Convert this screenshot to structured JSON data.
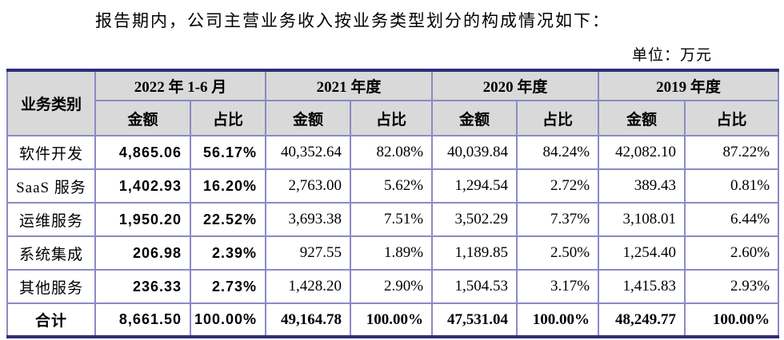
{
  "page": {
    "intro_text": "报告期内，公司主营业务收入按业务类型划分的构成情况如下：",
    "unit_label": "单位：万元"
  },
  "table": {
    "header": {
      "category_label": "业务类别",
      "periods": [
        "2022 年 1-6 月",
        "2021 年度",
        "2020 年度",
        "2019 年度"
      ],
      "amount_label": "金额",
      "share_label": "占比"
    },
    "rows": [
      {
        "category": "软件开发",
        "values": [
          "4,865.06",
          "56.17%",
          "40,352.64",
          "82.08%",
          "40,039.84",
          "84.24%",
          "42,082.10",
          "87.22%"
        ]
      },
      {
        "category": "SaaS 服务",
        "values": [
          "1,402.93",
          "16.20%",
          "2,763.00",
          "5.62%",
          "1,294.54",
          "2.72%",
          "389.43",
          "0.81%"
        ]
      },
      {
        "category": "运维服务",
        "values": [
          "1,950.20",
          "22.52%",
          "3,693.38",
          "7.51%",
          "3,502.29",
          "7.37%",
          "3,108.01",
          "6.44%"
        ]
      },
      {
        "category": "系统集成",
        "values": [
          "206.98",
          "2.39%",
          "927.55",
          "1.89%",
          "1,189.85",
          "2.50%",
          "1,254.40",
          "2.60%"
        ]
      },
      {
        "category": "其他服务",
        "values": [
          "236.33",
          "2.73%",
          "1,428.20",
          "2.90%",
          "1,504.53",
          "3.17%",
          "1,415.83",
          "2.93%"
        ]
      }
    ],
    "total_row": {
      "category": "合计",
      "values": [
        "8,661.50",
        "100.00%",
        "49,164.78",
        "100.00%",
        "47,531.04",
        "100.00%",
        "48,249.77",
        "100.00%"
      ]
    }
  },
  "colors": {
    "header_bg": "#d9d9d9",
    "grid_border": "#8a8ac4",
    "outer_border": "#2e2e78",
    "side_border": "#6a6ab3",
    "text": "#000000"
  }
}
